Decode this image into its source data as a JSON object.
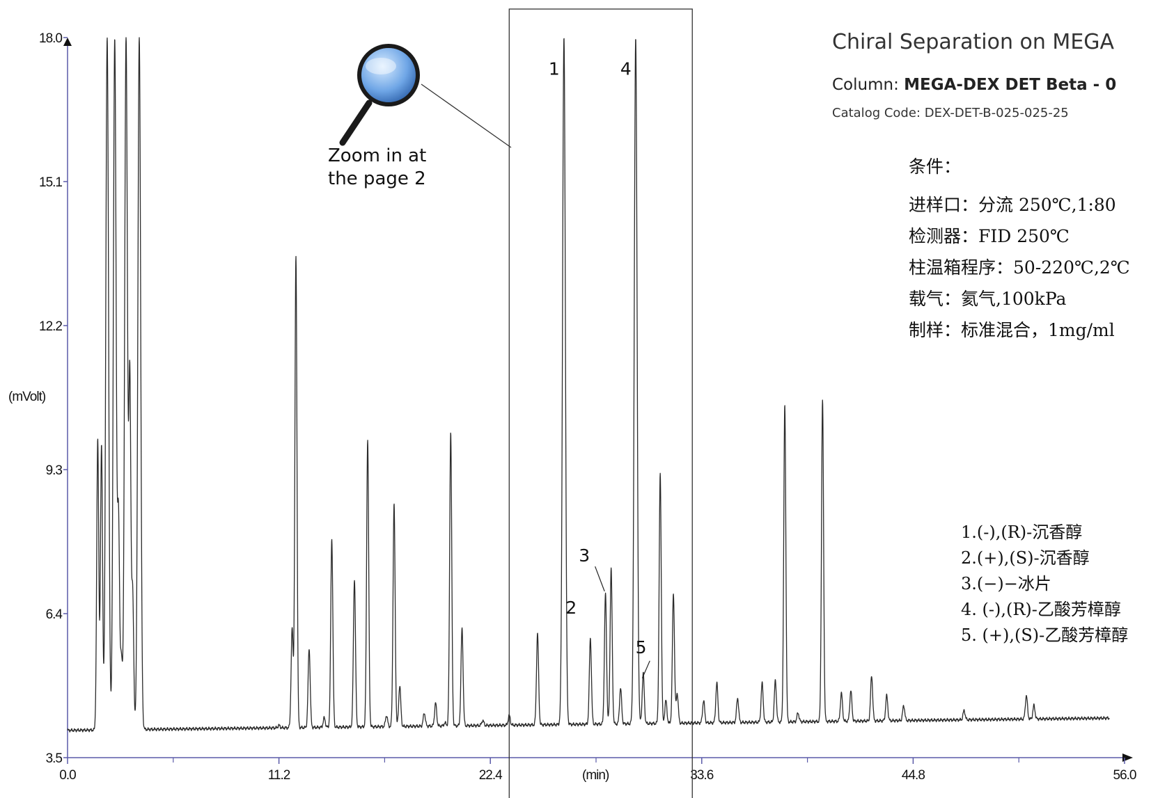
{
  "chart_data": {
    "type": "line",
    "title": "Chiral Separation on MEGA",
    "xlabel": "(min)",
    "ylabel": "(mVolt)",
    "xlim": [
      0,
      56
    ],
    "ylim": [
      3.5,
      18.0
    ],
    "x_ticks": [
      "0.0",
      "11.2",
      "22.4",
      "33.6",
      "44.8",
      "56.0"
    ],
    "y_ticks": [
      "3.5",
      "6.4",
      "9.3",
      "12.2",
      "15.1",
      "18.0"
    ],
    "baseline": {
      "start": 4.05,
      "end": 4.3
    },
    "peaks": [
      {
        "t": 1.6,
        "h": 9.9
      },
      {
        "t": 1.8,
        "h": 9.8
      },
      {
        "t": 2.1,
        "h": 18.0
      },
      {
        "t": 2.5,
        "h": 18.0
      },
      {
        "t": 2.7,
        "h": 8.2
      },
      {
        "t": 2.85,
        "h": 5.5
      },
      {
        "t": 3.1,
        "h": 18.0
      },
      {
        "t": 3.3,
        "h": 11.0
      },
      {
        "t": 3.45,
        "h": 6.8
      },
      {
        "t": 3.8,
        "h": 18.0
      },
      {
        "t": 11.2,
        "h": 4.15
      },
      {
        "t": 11.9,
        "h": 6.1
      },
      {
        "t": 12.1,
        "h": 13.6
      },
      {
        "t": 12.8,
        "h": 5.7
      },
      {
        "t": 13.6,
        "h": 4.3
      },
      {
        "t": 14.0,
        "h": 7.9
      },
      {
        "t": 15.2,
        "h": 7.1
      },
      {
        "t": 15.9,
        "h": 9.9
      },
      {
        "t": 16.9,
        "h": 4.35
      },
      {
        "t": 17.3,
        "h": 8.6
      },
      {
        "t": 17.6,
        "h": 4.95
      },
      {
        "t": 18.9,
        "h": 4.4
      },
      {
        "t": 19.5,
        "h": 4.6
      },
      {
        "t": 20.0,
        "h": 4.2
      },
      {
        "t": 20.3,
        "h": 10.05
      },
      {
        "t": 20.9,
        "h": 6.1
      },
      {
        "t": 22.0,
        "h": 4.25
      },
      {
        "t": 23.4,
        "h": 4.35
      },
      {
        "t": 24.9,
        "h": 6.0
      },
      {
        "t": 26.3,
        "h": 18.0
      },
      {
        "t": 27.7,
        "h": 5.9
      },
      {
        "t": 28.5,
        "h": 6.8
      },
      {
        "t": 28.8,
        "h": 7.3
      },
      {
        "t": 29.3,
        "h": 4.9
      },
      {
        "t": 30.1,
        "h": 18.0
      },
      {
        "t": 30.5,
        "h": 5.2
      },
      {
        "t": 31.4,
        "h": 9.2
      },
      {
        "t": 31.7,
        "h": 4.65
      },
      {
        "t": 32.1,
        "h": 6.8
      },
      {
        "t": 32.3,
        "h": 4.8
      },
      {
        "t": 33.7,
        "h": 4.65
      },
      {
        "t": 34.4,
        "h": 5.0
      },
      {
        "t": 35.5,
        "h": 4.7
      },
      {
        "t": 36.8,
        "h": 5.0
      },
      {
        "t": 37.5,
        "h": 5.05
      },
      {
        "t": 38.0,
        "h": 10.6
      },
      {
        "t": 38.7,
        "h": 4.4
      },
      {
        "t": 40.0,
        "h": 10.7
      },
      {
        "t": 41.0,
        "h": 4.8
      },
      {
        "t": 41.5,
        "h": 4.85
      },
      {
        "t": 42.6,
        "h": 5.15
      },
      {
        "t": 43.4,
        "h": 4.75
      },
      {
        "t": 44.3,
        "h": 4.55
      },
      {
        "t": 47.5,
        "h": 4.45
      },
      {
        "t": 50.8,
        "h": 4.75
      },
      {
        "t": 51.2,
        "h": 4.55
      }
    ],
    "peak_labels": [
      {
        "text": "1",
        "t": 26.3,
        "y": 17.25
      },
      {
        "text": "4",
        "t": 30.1,
        "y": 17.25
      },
      {
        "text": "3",
        "t": 27.9,
        "y": 7.45
      },
      {
        "text": "2",
        "t": 27.2,
        "y": 6.4
      },
      {
        "text": "5",
        "t": 30.9,
        "y": 5.6
      }
    ],
    "zoom_window": [
      23.4,
      33.1
    ]
  },
  "annotations": {
    "zoom_line1": "Zoom in at",
    "zoom_line2": "the page 2"
  },
  "info": {
    "column_prefix": "Column: ",
    "column_name": "MEGA-DEX DET Beta - 0",
    "catalog": "Catalog Code: DEX-DET-B-025-025-25"
  },
  "conditions": {
    "heading": "条件：",
    "lines": [
      "进样口：分流 250℃,1:80",
      "检测器：FID 250℃",
      "柱温箱程序：50-220℃,2℃",
      "载气：氦气,100kPa",
      "制样：标准混合，1mg/ml"
    ]
  },
  "legend": [
    "1.(-),(R)-沉香醇",
    "2.(+),(S)-沉香醇",
    "3.(−)−冰片",
    "4. (-),(R)-乙酸芳樟醇",
    "5. (+),(S)-乙酸芳樟醇"
  ],
  "colors": {
    "axis": "#5a5aa8",
    "trace": "#2b2b2b",
    "lens": "#4d8fd8"
  }
}
